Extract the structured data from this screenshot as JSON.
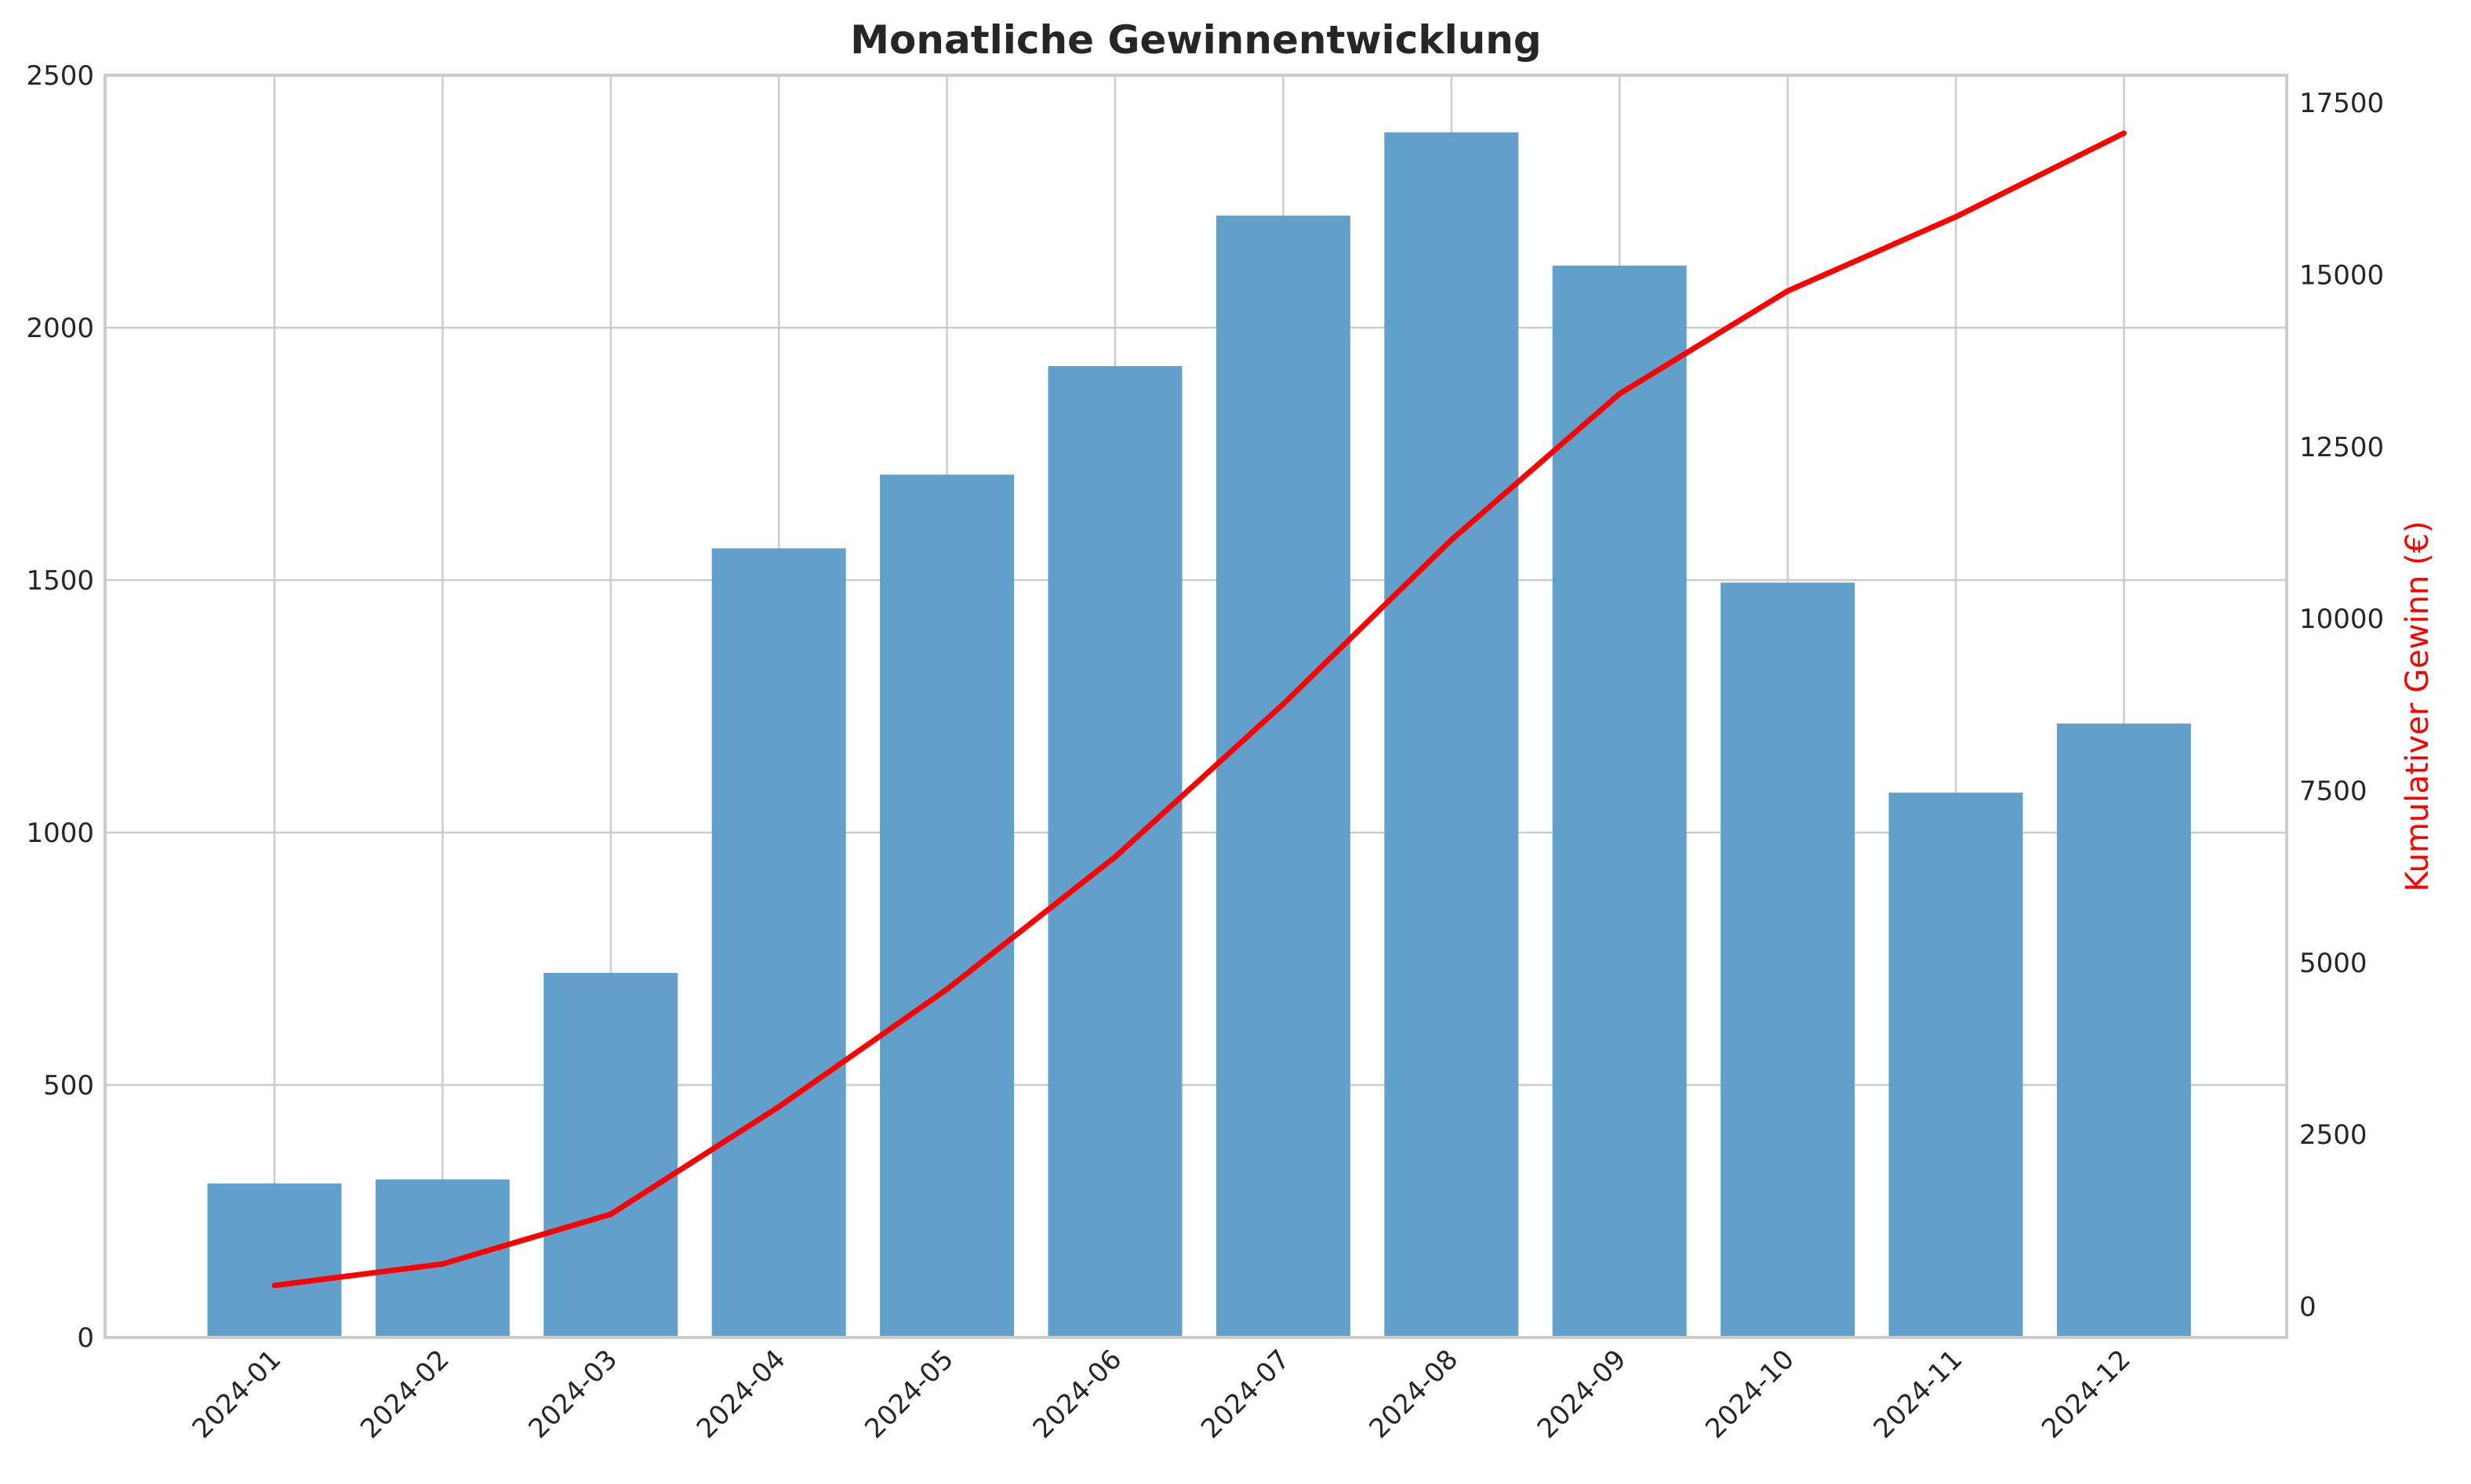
{
  "chart_data": {
    "type": "bar",
    "title": "Monatliche Gewinnentwicklung",
    "xlabel": "",
    "ylabel": "",
    "ylabel_right": "Kumulativer Gewinn (€)",
    "categories": [
      "2024-01",
      "2024-02",
      "2024-03",
      "2024-04",
      "2024-05",
      "2024-06",
      "2024-07",
      "2024-08",
      "2024-09",
      "2024-10",
      "2024-11",
      "2024-12"
    ],
    "series": [
      {
        "axis": "left",
        "kind": "bar",
        "color": "#5f9ecb",
        "values": [
          305,
          313,
          722,
          1563,
          1709,
          1924,
          2222,
          2387,
          2123,
          1495,
          1079,
          1216
        ]
      },
      {
        "axis": "right",
        "kind": "line",
        "color": "#ff0000",
        "values": [
          305,
          618,
          1340,
          2903,
          4612,
          6536,
          8758,
          11145,
          13268,
          14763,
          15842,
          17058
        ]
      }
    ],
    "ylim": [
      0,
      2500
    ],
    "ylim_right": [
      -450,
      17900
    ],
    "yticks": [
      "0",
      "500",
      "1000",
      "1500",
      "2000",
      "2500"
    ],
    "yticks_right": [
      "0",
      "2500",
      "5000",
      "7500",
      "10000",
      "12500",
      "15000",
      "17500"
    ],
    "grid": true,
    "legend": "none"
  }
}
